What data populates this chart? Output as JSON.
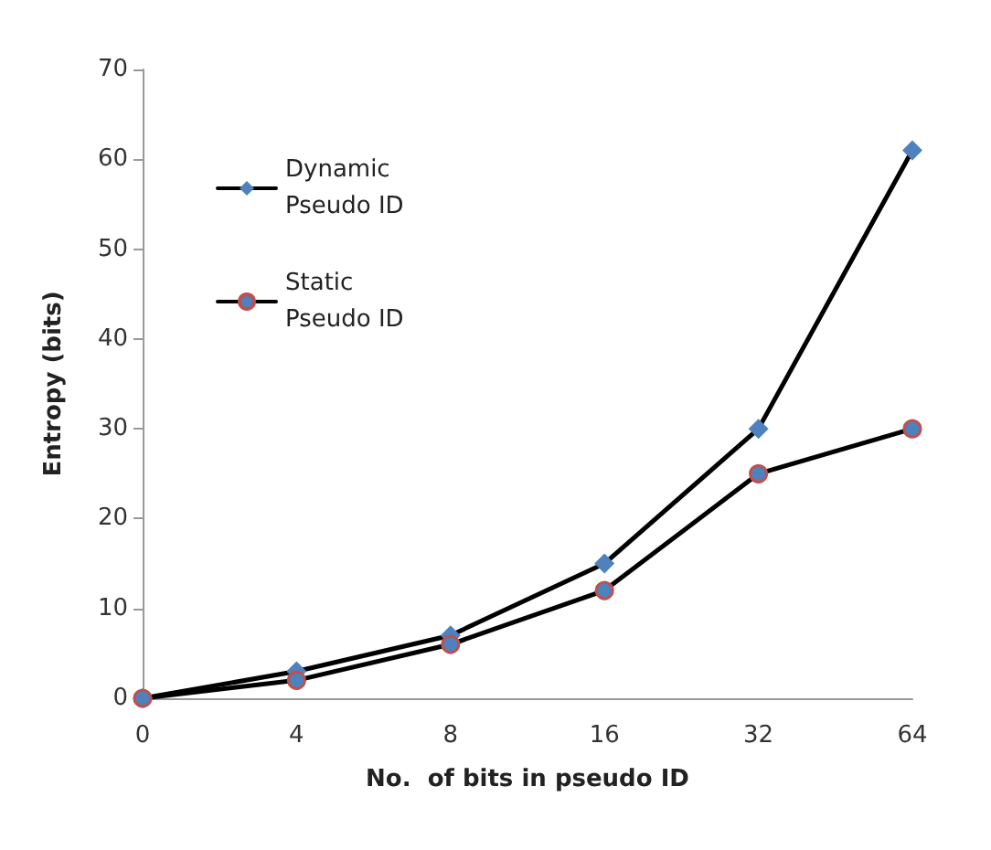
{
  "chart_data": {
    "type": "line",
    "xlabel": "No.  of bits in pseudo ID",
    "ylabel": "Entropy (bits)",
    "categories": [
      "0",
      "4",
      "8",
      "16",
      "32",
      "64"
    ],
    "series": [
      {
        "name": "Dynamic Pseudo ID",
        "color": "#4f81bd",
        "marker": "diamond",
        "values": [
          0,
          3,
          7,
          15,
          30,
          61
        ]
      },
      {
        "name": "Static Pseudo ID",
        "color": "#4f81bd",
        "marker": "circle",
        "values": [
          0,
          2,
          6,
          12,
          25,
          30
        ]
      }
    ],
    "ylim": [
      0,
      70
    ],
    "yticks": [
      0,
      10,
      20,
      30,
      40,
      50,
      60,
      70
    ],
    "grid": false,
    "legend": "top left",
    "line_style": "solid"
  }
}
